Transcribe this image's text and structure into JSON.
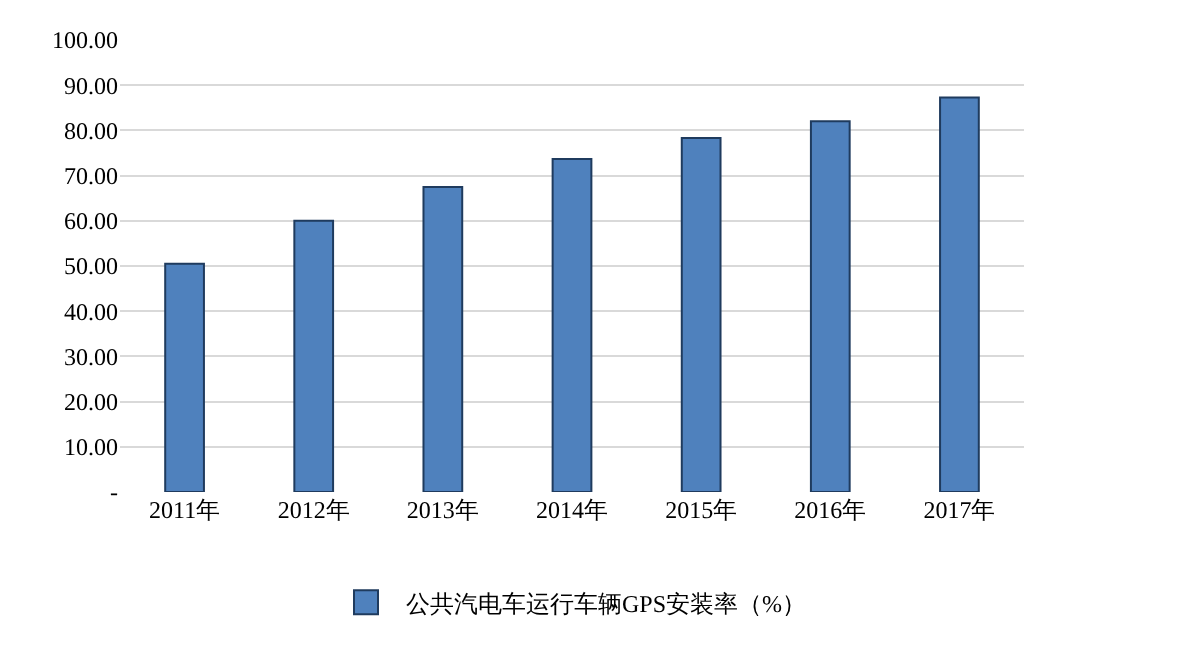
{
  "chart_data": {
    "type": "bar",
    "categories": [
      "2011年",
      "2012年",
      "2013年",
      "2014年",
      "2015年",
      "2016年",
      "2017年"
    ],
    "series": [
      {
        "name": "公共汽电车运行车辆GPS安装率（%）",
        "color": "#4f81bd",
        "values": [
          50.5,
          60,
          67.5,
          73.7,
          78.3,
          82,
          87.3
        ]
      }
    ],
    "ylim": [
      0,
      100
    ],
    "yticks": [
      {
        "value": 0,
        "label": "-"
      },
      {
        "value": 10,
        "label": "10.00"
      },
      {
        "value": 20,
        "label": "20.00"
      },
      {
        "value": 30,
        "label": "30.00"
      },
      {
        "value": 40,
        "label": "40.00"
      },
      {
        "value": 50,
        "label": "50.00"
      },
      {
        "value": 60,
        "label": "60.00"
      },
      {
        "value": 70,
        "label": "70.00"
      },
      {
        "value": 80,
        "label": "80.00"
      },
      {
        "value": 90,
        "label": "90.00"
      },
      {
        "value": 100,
        "label": "100.00"
      }
    ],
    "grid": "y",
    "legend": "bottom"
  }
}
